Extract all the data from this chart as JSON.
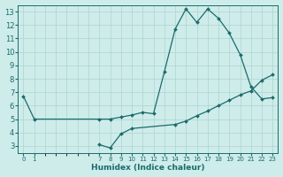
{
  "xlabel": "Humidex (Indice chaleur)",
  "bg_color": "#ceecea",
  "grid_color": "#aed4d0",
  "line_color": "#1a6b6b",
  "xlim": [
    -0.5,
    23.5
  ],
  "ylim": [
    2.5,
    13.5
  ],
  "yticks": [
    3,
    4,
    5,
    6,
    7,
    8,
    9,
    10,
    11,
    12,
    13
  ],
  "xtick_positions": [
    0,
    1,
    7,
    8,
    9,
    10,
    11,
    12,
    13,
    14,
    15,
    16,
    17,
    18,
    19,
    20,
    21,
    22,
    23
  ],
  "xtick_labels": [
    "0",
    "1",
    "7",
    "8",
    "9",
    "10",
    "11",
    "12",
    "13",
    "14",
    "15",
    "16",
    "17",
    "18",
    "19",
    "20",
    "21",
    "22",
    "23"
  ],
  "line1_x": [
    0,
    1,
    7,
    8,
    9,
    10,
    11,
    12,
    13,
    14,
    15,
    16,
    17,
    18,
    19,
    20,
    21,
    22,
    23
  ],
  "line1_y": [
    6.7,
    5.0,
    5.0,
    5.0,
    5.15,
    5.3,
    5.5,
    5.4,
    8.5,
    11.7,
    13.2,
    12.2,
    13.2,
    12.5,
    11.4,
    9.8,
    7.4,
    6.5,
    6.6
  ],
  "line2_x": [
    7,
    8,
    9,
    10,
    14,
    15,
    16,
    17,
    18,
    19,
    20,
    21,
    22,
    23
  ],
  "line2_y": [
    3.1,
    2.85,
    3.9,
    4.3,
    4.6,
    4.85,
    5.25,
    5.6,
    6.0,
    6.4,
    6.8,
    7.1,
    7.9,
    8.3
  ]
}
